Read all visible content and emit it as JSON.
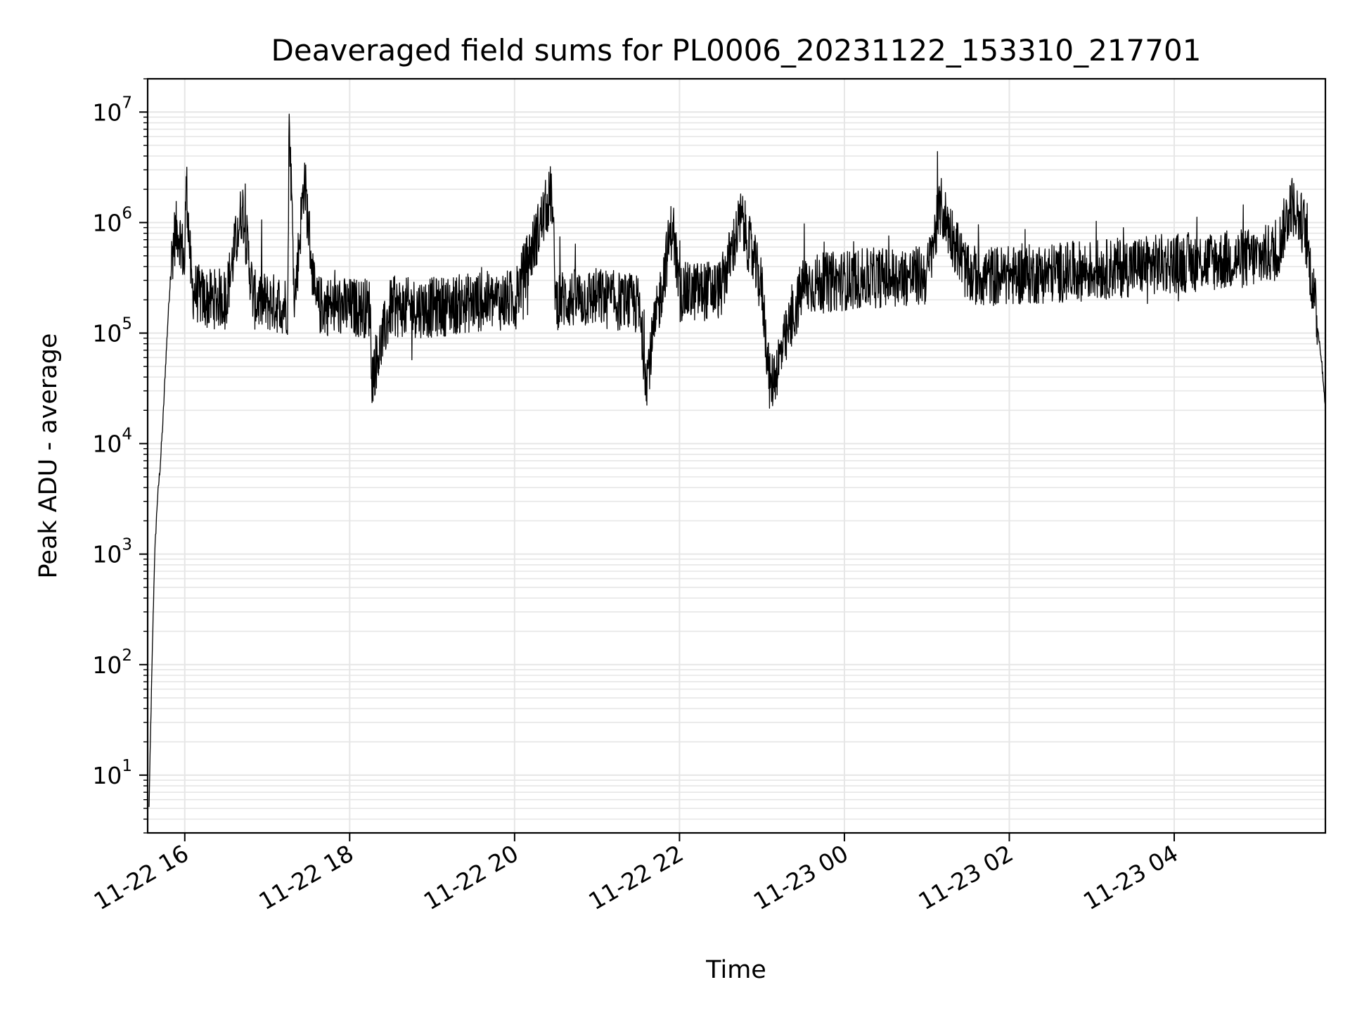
{
  "chart_data": {
    "type": "line",
    "title": "Deaveraged field sums for PL0006_20231122_153310_217701",
    "xlabel": "Time",
    "ylabel": "Peak ADU - average",
    "yscale": "log",
    "ylim": [
      3,
      20000000
    ],
    "xlim": [
      "2023-11-22 15:33",
      "2023-11-23 05:50"
    ],
    "grid": true,
    "x_ticks": [
      {
        "t": "2023-11-22 16:00",
        "label": "11-22 16"
      },
      {
        "t": "2023-11-22 18:00",
        "label": "11-22 18"
      },
      {
        "t": "2023-11-22 20:00",
        "label": "11-22 20"
      },
      {
        "t": "2023-11-22 22:00",
        "label": "11-22 22"
      },
      {
        "t": "2023-11-23 00:00",
        "label": "11-23 00"
      },
      {
        "t": "2023-11-23 02:00",
        "label": "11-23 02"
      },
      {
        "t": "2023-11-23 04:00",
        "label": "11-23 04"
      }
    ],
    "y_ticks": [
      {
        "value": 10,
        "base": "10",
        "exp": "1"
      },
      {
        "value": 100,
        "base": "10",
        "exp": "2"
      },
      {
        "value": 1000,
        "base": "10",
        "exp": "3"
      },
      {
        "value": 10000,
        "base": "10",
        "exp": "4"
      },
      {
        "value": 100000,
        "base": "10",
        "exp": "5"
      },
      {
        "value": 1000000,
        "base": "10",
        "exp": "6"
      },
      {
        "value": 10000000,
        "base": "10",
        "exp": "7"
      }
    ],
    "series": [
      {
        "color": "#000000",
        "points": [
          [
            "2023-11-22 15:34",
            5
          ],
          [
            "2023-11-22 15:36",
            80
          ],
          [
            "2023-11-22 15:38",
            900
          ],
          [
            "2023-11-22 15:40",
            3000
          ],
          [
            "2023-11-22 15:42",
            6000
          ],
          [
            "2023-11-22 15:44",
            15000
          ],
          [
            "2023-11-22 15:46",
            50000
          ],
          [
            "2023-11-22 15:48",
            150000
          ],
          [
            "2023-11-22 15:50",
            400000
          ],
          [
            "2023-11-22 15:52",
            700000
          ],
          [
            "2023-11-22 15:54",
            850000
          ],
          [
            "2023-11-22 15:56",
            800000
          ],
          [
            "2023-11-22 15:58",
            600000
          ],
          [
            "2023-11-22 16:00",
            400000
          ],
          [
            "2023-11-22 16:01",
            2600000
          ],
          [
            "2023-11-22 16:05",
            250000
          ],
          [
            "2023-11-22 16:15",
            200000
          ],
          [
            "2023-11-22 16:30",
            210000
          ],
          [
            "2023-11-22 16:42",
            1400000
          ],
          [
            "2023-11-22 16:50",
            200000
          ],
          [
            "2023-11-22 17:00",
            190000
          ],
          [
            "2023-11-22 17:15",
            180000
          ],
          [
            "2023-11-22 17:16",
            9600000
          ],
          [
            "2023-11-22 17:20",
            190000
          ],
          [
            "2023-11-22 17:27",
            2600000
          ],
          [
            "2023-11-22 17:35",
            180000
          ],
          [
            "2023-11-22 18:00",
            170000
          ],
          [
            "2023-11-22 18:15",
            170000
          ],
          [
            "2023-11-22 18:16",
            40000
          ],
          [
            "2023-11-22 18:30",
            170000
          ],
          [
            "2023-11-22 19:00",
            170000
          ],
          [
            "2023-11-22 19:30",
            190000
          ],
          [
            "2023-11-22 20:00",
            200000
          ],
          [
            "2023-11-22 20:27",
            1900000
          ],
          [
            "2023-11-22 20:30",
            200000
          ],
          [
            "2023-11-22 21:00",
            210000
          ],
          [
            "2023-11-22 21:30",
            180000
          ],
          [
            "2023-11-22 21:36",
            40000
          ],
          [
            "2023-11-22 21:55",
            1000000
          ],
          [
            "2023-11-22 22:00",
            230000
          ],
          [
            "2023-11-22 22:30",
            250000
          ],
          [
            "2023-11-22 22:45",
            1100000
          ],
          [
            "2023-11-22 23:00",
            250000
          ],
          [
            "2023-11-22 23:06",
            32000
          ],
          [
            "2023-11-22 23:30",
            270000
          ],
          [
            "2023-11-23 00:00",
            300000
          ],
          [
            "2023-11-23 00:30",
            320000
          ],
          [
            "2023-11-23 01:00",
            330000
          ],
          [
            "2023-11-23 01:10",
            1400000
          ],
          [
            "2023-11-23 01:30",
            330000
          ],
          [
            "2023-11-23 02:00",
            330000
          ],
          [
            "2023-11-23 02:30",
            350000
          ],
          [
            "2023-11-23 03:00",
            370000
          ],
          [
            "2023-11-23 03:30",
            400000
          ],
          [
            "2023-11-23 04:00",
            430000
          ],
          [
            "2023-11-23 04:30",
            450000
          ],
          [
            "2023-11-23 05:00",
            480000
          ],
          [
            "2023-11-23 05:15",
            550000
          ],
          [
            "2023-11-23 05:25",
            1500000
          ],
          [
            "2023-11-23 05:35",
            900000
          ],
          [
            "2023-11-23 05:42",
            200000
          ],
          [
            "2023-11-23 05:47",
            60000
          ],
          [
            "2023-11-23 05:50",
            22000
          ]
        ]
      }
    ]
  }
}
